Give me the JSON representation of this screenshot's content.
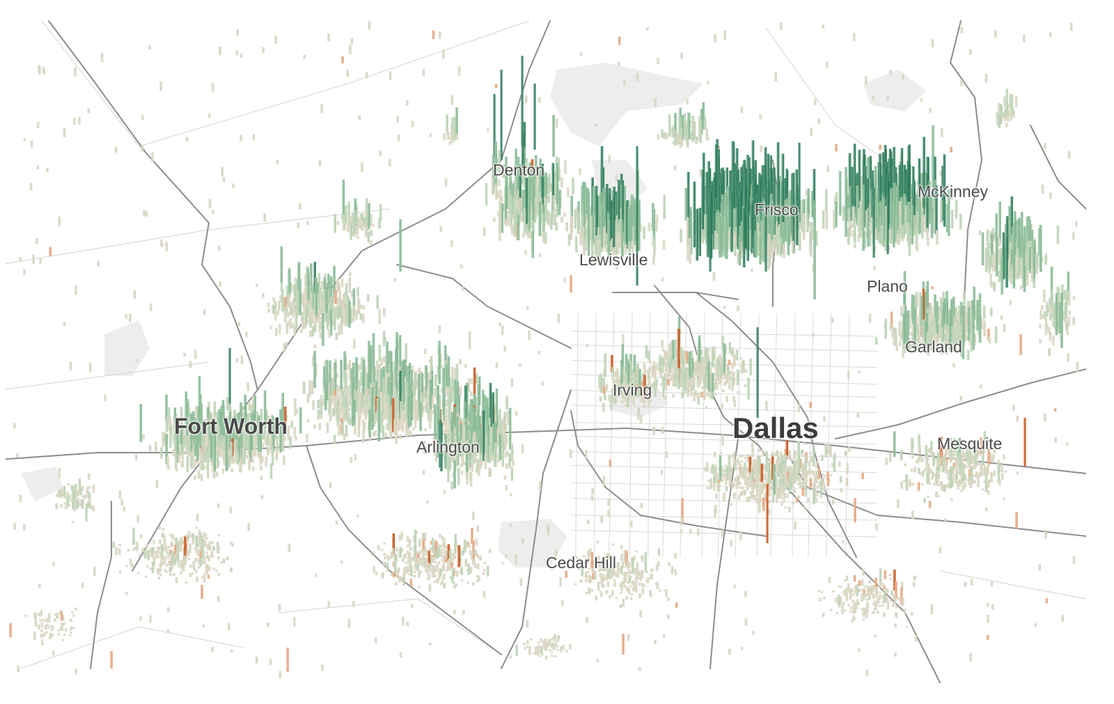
{
  "map": {
    "style": "3d-spike-map",
    "region": "Dallas-Fort Worth",
    "colors": {
      "background": "#ffffff",
      "water": "#ededed",
      "road_major": "#8c8c8c",
      "road_minor": "#d9d9d9",
      "base_spike": "#d7d4bf",
      "growth_low": "#bcd1b4",
      "growth_mid": "#86b892",
      "growth_high": "#2e7d5b",
      "decline_low": "#e3a57e",
      "decline_high": "#c8561c",
      "label_text": "#4a4a4a"
    },
    "cities": [
      {
        "id": "denton",
        "name": "Denton",
        "size": "small"
      },
      {
        "id": "lewisville",
        "name": "Lewisville",
        "size": "small"
      },
      {
        "id": "frisco",
        "name": "Frisco",
        "size": "small"
      },
      {
        "id": "mckinney",
        "name": "McKinney",
        "size": "small"
      },
      {
        "id": "plano",
        "name": "Plano",
        "size": "small"
      },
      {
        "id": "garland",
        "name": "Garland",
        "size": "small"
      },
      {
        "id": "irving",
        "name": "Irving",
        "size": "small"
      },
      {
        "id": "fort_worth",
        "name": "Fort Worth",
        "size": "medium"
      },
      {
        "id": "arlington",
        "name": "Arlington",
        "size": "small"
      },
      {
        "id": "dallas",
        "name": "Dallas",
        "size": "large"
      },
      {
        "id": "mesquite",
        "name": "Mesquite",
        "size": "small"
      },
      {
        "id": "cedar_hill",
        "name": "Cedar Hill",
        "size": "small"
      }
    ]
  }
}
